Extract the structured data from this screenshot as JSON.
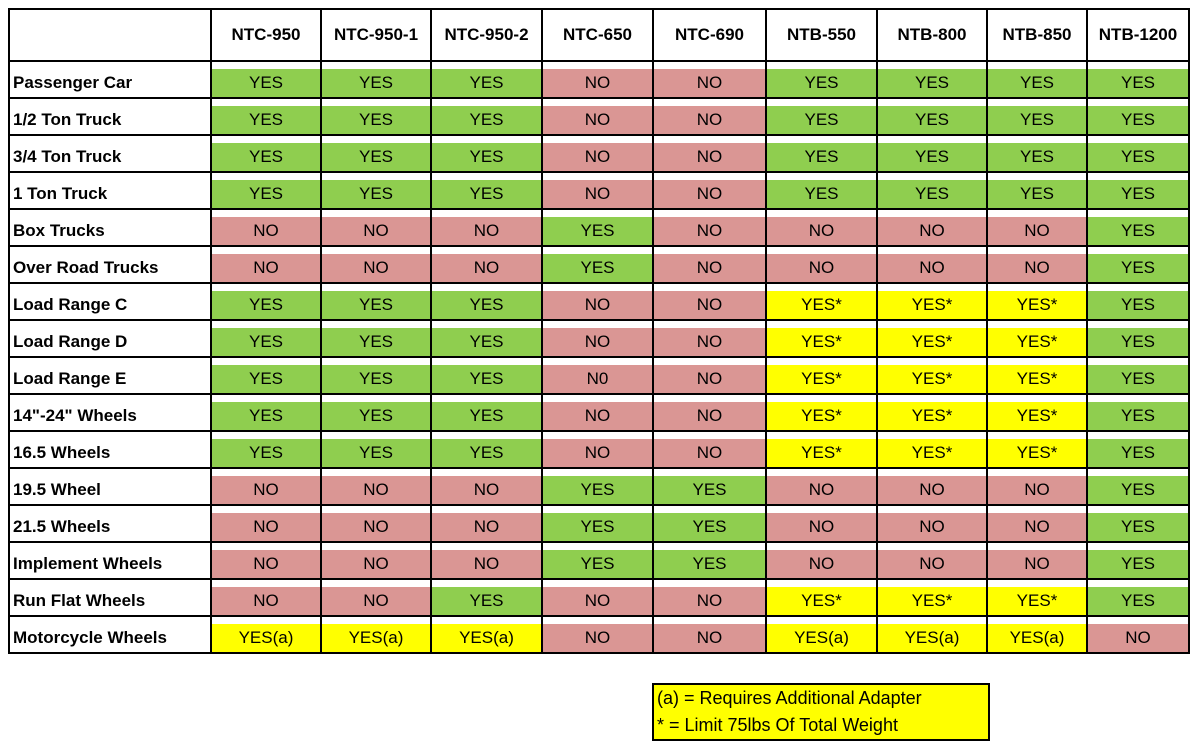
{
  "table": {
    "columns": [
      "NTC-950",
      "NTC-950-1",
      "NTC-950-2",
      "NTC-650",
      "NTC-690",
      "NTB-550",
      "NTB-800",
      "NTB-850",
      "NTB-1200"
    ],
    "rows": [
      [
        "Passenger Car",
        "YES",
        "YES",
        "YES",
        "NO",
        "NO",
        "YES",
        "YES",
        "YES",
        "YES"
      ],
      [
        "1/2 Ton Truck",
        "YES",
        "YES",
        "YES",
        "NO",
        "NO",
        "YES",
        "YES",
        "YES",
        "YES"
      ],
      [
        "3/4 Ton Truck",
        "YES",
        "YES",
        "YES",
        "NO",
        "NO",
        "YES",
        "YES",
        "YES",
        "YES"
      ],
      [
        "1 Ton Truck",
        "YES",
        "YES",
        "YES",
        "NO",
        "NO",
        "YES",
        "YES",
        "YES",
        "YES"
      ],
      [
        "Box Trucks",
        "NO",
        "NO",
        "NO",
        "YES",
        "NO",
        "NO",
        "NO",
        "NO",
        "YES"
      ],
      [
        "Over Road Trucks",
        "NO",
        "NO",
        "NO",
        "YES",
        "NO",
        "NO",
        "NO",
        "NO",
        "YES"
      ],
      [
        "Load Range C",
        "YES",
        "YES",
        "YES",
        "NO",
        "NO",
        "YES*",
        "YES*",
        "YES*",
        "YES"
      ],
      [
        "Load Range D",
        "YES",
        "YES",
        "YES",
        "NO",
        "NO",
        "YES*",
        "YES*",
        "YES*",
        "YES"
      ],
      [
        "Load Range E",
        "YES",
        "YES",
        "YES",
        "N0",
        "NO",
        "YES*",
        "YES*",
        "YES*",
        "YES"
      ],
      [
        "14\"-24\" Wheels",
        "YES",
        "YES",
        "YES",
        "NO",
        "NO",
        "YES*",
        "YES*",
        "YES*",
        "YES"
      ],
      [
        "16.5 Wheels",
        "YES",
        "YES",
        "YES",
        "NO",
        "NO",
        "YES*",
        "YES*",
        "YES*",
        "YES"
      ],
      [
        "19.5 Wheel",
        "NO",
        "NO",
        "NO",
        "YES",
        "YES",
        "NO",
        "NO",
        "NO",
        "YES"
      ],
      [
        "21.5 Wheels",
        "NO",
        "NO",
        "NO",
        "YES",
        "YES",
        "NO",
        "NO",
        "NO",
        "YES"
      ],
      [
        "Implement Wheels",
        "NO",
        "NO",
        "NO",
        "YES",
        "YES",
        "NO",
        "NO",
        "NO",
        "YES"
      ],
      [
        "Run Flat Wheels",
        "NO",
        "NO",
        "YES",
        "NO",
        "NO",
        "YES*",
        "YES*",
        "YES*",
        "YES"
      ],
      [
        "Motorcycle Wheels",
        "YES(a)",
        "YES(a)",
        "YES(a)",
        "NO",
        "NO",
        "YES(a)",
        "YES(a)",
        "YES(a)",
        "NO"
      ]
    ]
  },
  "legend": [
    "(a) = Requires Additional Adapter",
    "* = Limit 75lbs Of Total Weight"
  ]
}
